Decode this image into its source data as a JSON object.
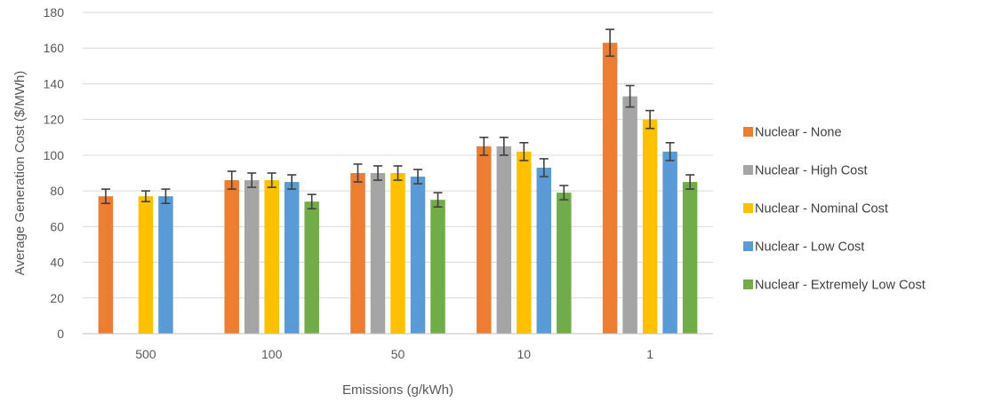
{
  "chart_data": {
    "type": "bar",
    "title": "",
    "xlabel": "Emissions (g/kWh)",
    "ylabel": "Average Generation Cost ($/MWh)",
    "ylim": [
      0,
      180
    ],
    "yticks": [
      "0",
      "20",
      "40",
      "60",
      "80",
      "100",
      "120",
      "140",
      "160",
      "180"
    ],
    "grid": true,
    "legend_position": "right",
    "error_bars": true,
    "categories": [
      "500",
      "100",
      "50",
      "10",
      "1"
    ],
    "series": [
      {
        "name": "Nuclear - None",
        "color": "#ED7D31",
        "values": [
          77,
          86,
          90,
          105,
          163
        ],
        "errors": [
          4,
          5,
          5,
          5,
          7.5
        ]
      },
      {
        "name": "Nuclear - High Cost",
        "color": "#A5A5A5",
        "values": [
          null,
          86,
          90,
          105,
          133
        ],
        "errors": [
          null,
          4,
          4,
          5,
          6
        ]
      },
      {
        "name": "Nuclear - Nominal Cost",
        "color": "#FFC000",
        "values": [
          77,
          86,
          90,
          102,
          120
        ],
        "errors": [
          3,
          4,
          4,
          5,
          5
        ]
      },
      {
        "name": "Nuclear - Low Cost",
        "color": "#5B9BD5",
        "values": [
          77,
          85,
          88,
          93,
          102
        ],
        "errors": [
          4,
          4,
          4,
          5,
          5
        ]
      },
      {
        "name": "Nuclear - Extremely  Low Cost",
        "color": "#70AD47",
        "values": [
          null,
          74,
          75,
          79,
          85
        ],
        "errors": [
          null,
          4,
          4,
          4,
          4
        ]
      }
    ]
  }
}
